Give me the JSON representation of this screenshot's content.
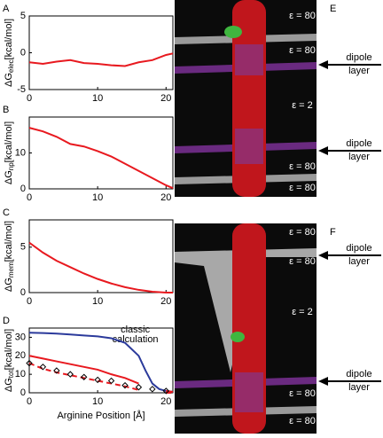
{
  "chart_data": [
    {
      "type": "line",
      "panel_label": "A",
      "ylabel": {
        "main": "ΔG",
        "sub": "elec",
        "unit": "[kcal/mol]"
      },
      "xlim": [
        0,
        21
      ],
      "xticks": [
        0,
        10,
        20
      ],
      "ylim": [
        -5,
        5
      ],
      "yticks": [
        -5,
        0,
        5
      ],
      "x": [
        0,
        2,
        4,
        6,
        8,
        10,
        12,
        14,
        16,
        18,
        20,
        21
      ],
      "series": [
        {
          "color": "#e8191f",
          "dashed": false,
          "values": [
            -1.3,
            -1.5,
            -1.2,
            -1.0,
            -1.4,
            -1.5,
            -1.7,
            -1.8,
            -1.3,
            -1.0,
            -0.3,
            -0.1
          ]
        }
      ]
    },
    {
      "type": "line",
      "panel_label": "B",
      "ylabel": {
        "main": "ΔG",
        "sub": "np",
        "unit": "[kcal/mol]"
      },
      "xlim": [
        0,
        21
      ],
      "xticks": [
        0,
        10,
        20
      ],
      "ylim": [
        0,
        20
      ],
      "yticks": [
        0,
        10
      ],
      "x": [
        0,
        2,
        4,
        6,
        8,
        10,
        12,
        14,
        16,
        18,
        20,
        21
      ],
      "series": [
        {
          "color": "#e8191f",
          "dashed": false,
          "values": [
            17,
            16,
            14.5,
            12.5,
            11.8,
            10.5,
            9,
            7,
            5,
            3,
            1,
            0.2
          ]
        }
      ]
    },
    {
      "type": "line",
      "panel_label": "C",
      "ylabel": {
        "main": "ΔG",
        "sub": "mem",
        "unit": "[kcal/mol]"
      },
      "xlim": [
        0,
        21
      ],
      "xticks": [
        0,
        10,
        20
      ],
      "ylim": [
        0,
        8
      ],
      "yticks": [
        0,
        5
      ],
      "x": [
        0,
        2,
        4,
        6,
        8,
        10,
        12,
        14,
        16,
        18,
        20,
        21
      ],
      "series": [
        {
          "color": "#e8191f",
          "dashed": false,
          "values": [
            5.5,
            4.4,
            3.5,
            2.8,
            2.1,
            1.5,
            1.0,
            0.6,
            0.3,
            0.1,
            0,
            0
          ]
        }
      ]
    },
    {
      "type": "line",
      "panel_label": "D",
      "ylabel": {
        "main": "ΔG",
        "sub": "tot",
        "unit": "[kcal/mol]"
      },
      "xlabel": "Arginine Position [Å]",
      "annotation": "classic calculation",
      "xlim": [
        0,
        21
      ],
      "xticks": [
        0,
        10,
        20
      ],
      "ylim": [
        0,
        35
      ],
      "yticks": [
        0,
        10,
        20,
        30
      ],
      "x": [
        0,
        2,
        4,
        6,
        8,
        10,
        12,
        14,
        16,
        17,
        18,
        19,
        20,
        21
      ],
      "series": [
        {
          "color": "#2b3a9b",
          "dashed": false,
          "values": [
            32.5,
            32.3,
            32,
            31.5,
            31,
            30.5,
            29.5,
            27,
            20,
            12,
            5,
            2,
            1,
            0.5
          ]
        },
        {
          "color": "#e8191f",
          "dashed": false,
          "values": [
            20,
            18.5,
            17,
            15.5,
            14,
            12.5,
            10,
            8,
            5,
            null,
            2.5,
            null,
            1,
            0.5
          ]
        },
        {
          "color": "#e8191f",
          "dashed": true,
          "values": [
            16,
            13,
            11,
            9.5,
            8,
            6.5,
            5,
            3.5,
            1.5,
            null,
            0.5,
            null,
            0,
            0
          ]
        },
        {
          "color": "#000000",
          "marker": "diamond",
          "values": [
            16,
            14,
            12,
            10,
            8.5,
            7,
            6.5,
            4,
            3,
            null,
            2,
            null,
            1,
            null
          ]
        }
      ]
    }
  ],
  "images": [
    {
      "label": "E",
      "eps": [
        "ε = 80",
        "ε = 80",
        "ε = 2",
        "ε = 80",
        "ε = 80"
      ],
      "dipole": [
        "dipole layer",
        "dipole layer"
      ]
    },
    {
      "label": "F",
      "eps": [
        "ε = 80",
        "ε = 80",
        "ε = 2",
        "ε = 80",
        "ε = 80"
      ],
      "dipole": [
        "dipole layer",
        "dipole layer"
      ]
    }
  ]
}
